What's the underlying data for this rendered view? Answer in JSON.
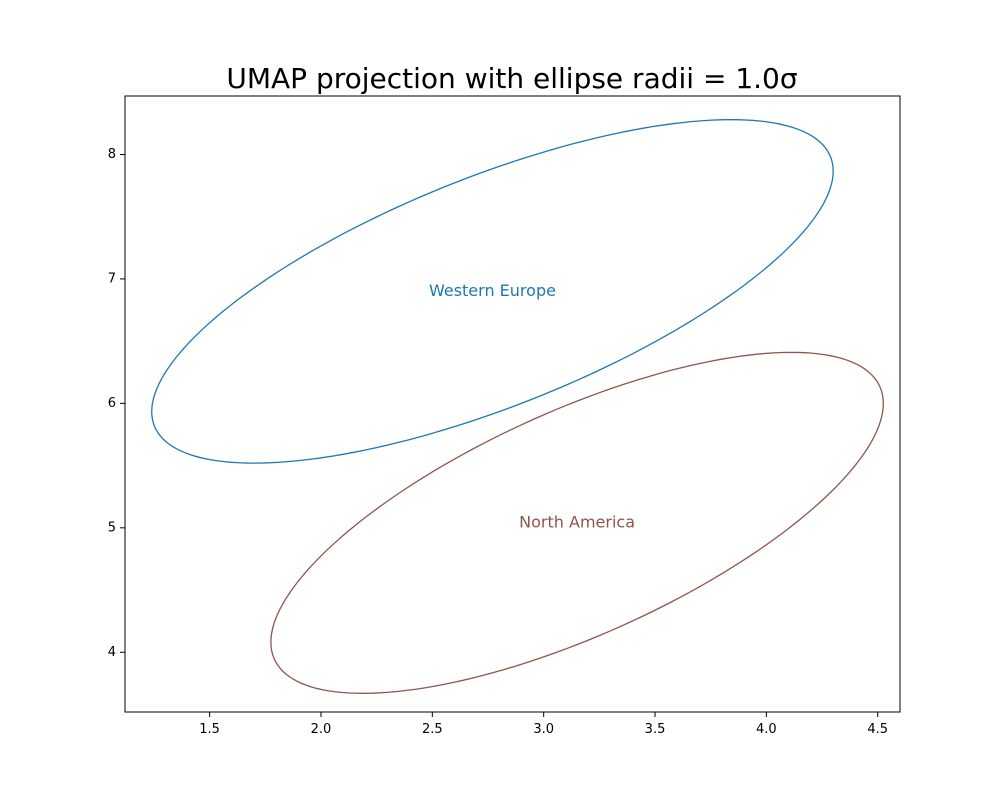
{
  "chart_data": {
    "type": "scatter",
    "title": "UMAP projection with ellipse radii = 1.0σ",
    "xlabel": "",
    "ylabel": "",
    "xlim": [
      1.12,
      4.6
    ],
    "ylim": [
      3.52,
      8.47
    ],
    "xticks": [
      1.5,
      2.0,
      2.5,
      3.0,
      3.5,
      4.0,
      4.5
    ],
    "xtick_labels": [
      "1.5",
      "2.0",
      "2.5",
      "3.0",
      "3.5",
      "4.0",
      "4.5"
    ],
    "yticks": [
      4,
      5,
      6,
      7,
      8
    ],
    "ytick_labels": [
      "4",
      "5",
      "6",
      "7",
      "8"
    ],
    "grid": false,
    "series": [
      {
        "name": "Western Europe",
        "color": "#1f77b4",
        "center": [
          2.77,
          6.9
        ],
        "x_extent": [
          1.24,
          4.3
        ],
        "y_extent": [
          5.52,
          8.28
        ]
      },
      {
        "name": "North America",
        "color": "#8c564b",
        "center": [
          3.15,
          5.04
        ],
        "x_extent": [
          1.77,
          4.52
        ],
        "y_extent": [
          3.68,
          6.42
        ]
      }
    ]
  }
}
